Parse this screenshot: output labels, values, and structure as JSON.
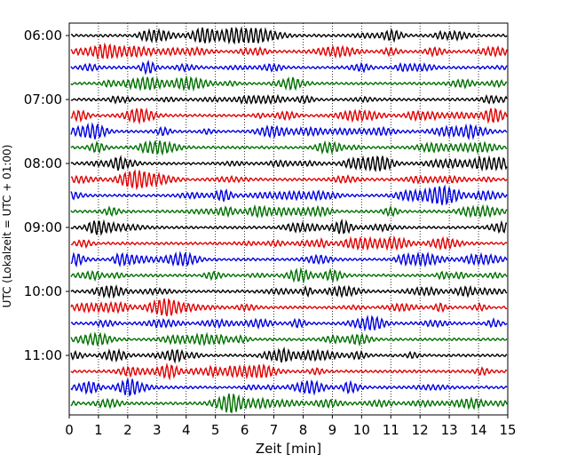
{
  "chart_data": {
    "type": "line",
    "title": "",
    "xlabel": "Zeit  [min]",
    "ylabel": "UTC (Lokalzeit = UTC + 01:00)",
    "xlim": [
      0,
      15
    ],
    "xticks": [
      0,
      1,
      2,
      3,
      4,
      5,
      6,
      7,
      8,
      9,
      10,
      11,
      12,
      13,
      14,
      15
    ],
    "x_grid": "dotted",
    "trace_interval_minutes": 15,
    "row_start": "06:00",
    "row_count": 24,
    "ytick_labels": [
      "06:00",
      "07:00",
      "08:00",
      "09:00",
      "10:00",
      "11:00"
    ],
    "trace_colors": [
      "#000000",
      "#e00000",
      "#0000e0",
      "#007000"
    ],
    "series_rows": [
      "06:00",
      "06:15",
      "06:30",
      "06:45",
      "07:00",
      "07:15",
      "07:30",
      "07:45",
      "08:00",
      "08:15",
      "08:30",
      "08:45",
      "09:00",
      "09:15",
      "09:30",
      "09:45",
      "10:00",
      "10:15",
      "10:30",
      "10:45",
      "11:00",
      "11:15",
      "11:30",
      "11:45"
    ]
  }
}
